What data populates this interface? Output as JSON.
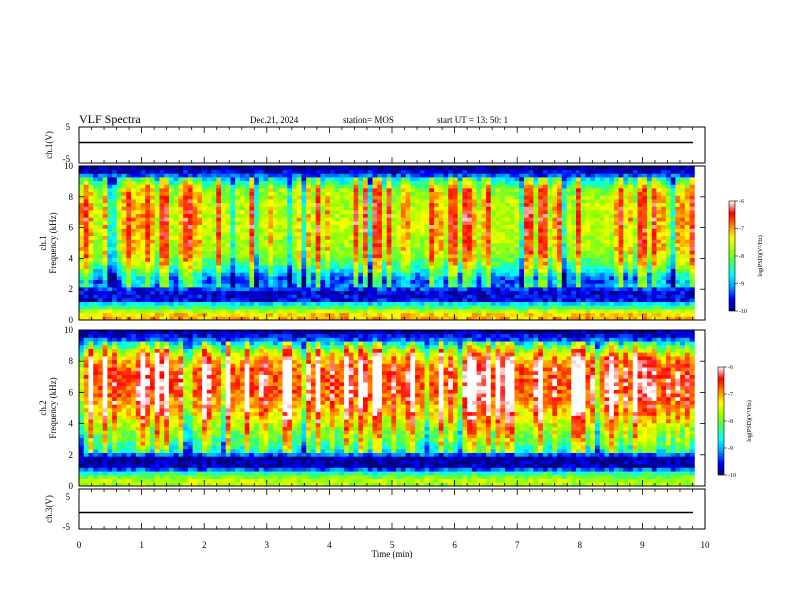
{
  "header": {
    "title": "VLF Spectra",
    "date": "Dec.21, 2024",
    "station": "station= MOS",
    "start": "start  UT =   13: 50: 1"
  },
  "colors": {
    "colormap": [
      "#00007a",
      "#0000ff",
      "#00a0ff",
      "#00ffff",
      "#40ff60",
      "#a0ff00",
      "#ffff00",
      "#ff8000",
      "#ff0000",
      "#ffffff"
    ],
    "line": "#000000"
  },
  "chart_data": [
    {
      "type": "line",
      "name": "ch1",
      "ylabel": "ch.1(V)",
      "ylim": [
        -5,
        5
      ],
      "yticks": [
        "5",
        "-5"
      ],
      "baseline": 0,
      "xlim": [
        0,
        10
      ]
    },
    {
      "type": "heatmap",
      "name": "ch1-spectrogram",
      "ylabel": "Frequency (kHz)",
      "ylabel2": "ch.1",
      "ylim": [
        0,
        10
      ],
      "yticks": [
        "0",
        "2",
        "4",
        "6",
        "8",
        "10"
      ],
      "xlim": [
        0,
        10
      ],
      "data_end_min": 9.83,
      "profile": [
        {
          "f": 0.0,
          "v": -7.2
        },
        {
          "f": 0.2,
          "v": -7.0
        },
        {
          "f": 0.5,
          "v": -7.4
        },
        {
          "f": 0.8,
          "v": -8.2
        },
        {
          "f": 1.1,
          "v": -8.8
        },
        {
          "f": 1.3,
          "v": -9.6
        },
        {
          "f": 1.8,
          "v": -9.7
        },
        {
          "f": 2.2,
          "v": -9.2
        },
        {
          "f": 2.6,
          "v": -9.4
        },
        {
          "f": 3.0,
          "v": -9.0
        },
        {
          "f": 3.6,
          "v": -8.3
        },
        {
          "f": 4.5,
          "v": -7.8
        },
        {
          "f": 5.5,
          "v": -7.7
        },
        {
          "f": 6.5,
          "v": -7.6
        },
        {
          "f": 7.5,
          "v": -7.7
        },
        {
          "f": 8.5,
          "v": -7.9
        },
        {
          "f": 9.0,
          "v": -8.6
        },
        {
          "f": 9.4,
          "v": -9.3
        },
        {
          "f": 9.7,
          "v": -9.8
        },
        {
          "f": 10.0,
          "v": -10.0
        }
      ],
      "colorbar": {
        "label": "log(PSD)(V²/Hz)",
        "range": [
          -10,
          -6
        ],
        "ticks": [
          "-6",
          "-7",
          "-8",
          "-9",
          "-10"
        ]
      }
    },
    {
      "type": "heatmap",
      "name": "ch2-spectrogram",
      "ylabel": "Frequency (kHz)",
      "ylabel2": "ch.2",
      "ylim": [
        0,
        10
      ],
      "yticks": [
        "0",
        "2",
        "4",
        "6",
        "8",
        "10"
      ],
      "xlim": [
        0,
        10
      ],
      "data_end_min": 9.83,
      "profile": [
        {
          "f": 0.0,
          "v": -7.8
        },
        {
          "f": 0.3,
          "v": -7.6
        },
        {
          "f": 0.6,
          "v": -8.0
        },
        {
          "f": 0.9,
          "v": -8.6
        },
        {
          "f": 1.2,
          "v": -9.8
        },
        {
          "f": 1.8,
          "v": -9.9
        },
        {
          "f": 2.2,
          "v": -8.8
        },
        {
          "f": 2.8,
          "v": -8.3
        },
        {
          "f": 3.5,
          "v": -8.0
        },
        {
          "f": 4.5,
          "v": -7.4
        },
        {
          "f": 5.5,
          "v": -6.9
        },
        {
          "f": 6.5,
          "v": -6.7
        },
        {
          "f": 7.5,
          "v": -6.8
        },
        {
          "f": 8.3,
          "v": -7.3
        },
        {
          "f": 8.8,
          "v": -8.1
        },
        {
          "f": 9.2,
          "v": -8.9
        },
        {
          "f": 9.6,
          "v": -9.6
        },
        {
          "f": 10.0,
          "v": -10.0
        }
      ],
      "colorbar": {
        "label": "log(PSD)(V²/Hz)",
        "range": [
          -10,
          -6
        ],
        "ticks": [
          "-6",
          "-7",
          "-8",
          "-9",
          "-10"
        ]
      }
    },
    {
      "type": "line",
      "name": "ch3",
      "ylabel": "ch.3(V)",
      "ylim": [
        -5,
        5
      ],
      "yticks": [
        "5",
        "-5"
      ],
      "baseline": 0,
      "xlim": [
        0,
        10
      ],
      "xlabel": "Time (min)",
      "xticks": [
        "0",
        "1",
        "2",
        "3",
        "4",
        "5",
        "6",
        "7",
        "8",
        "9",
        "10"
      ]
    }
  ]
}
